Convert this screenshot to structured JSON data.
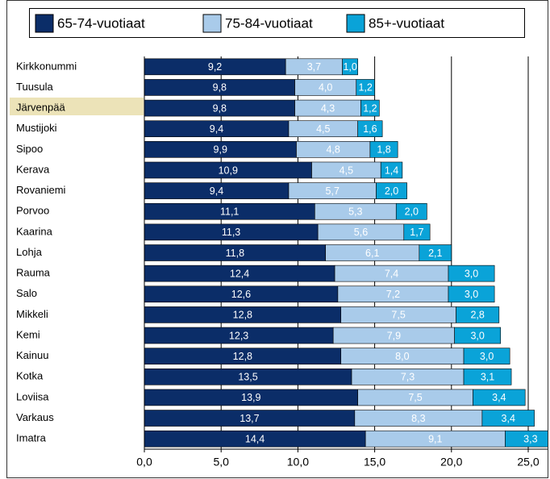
{
  "chart_data": {
    "type": "stacked_barh",
    "categories": [
      "Kirkkonummi",
      "Tuusula",
      "Järvenpää",
      "Mustijoki",
      "Sipoo",
      "Kerava",
      "Rovaniemi",
      "Porvoo",
      "Kaarina",
      "Lohja",
      "Rauma",
      "Salo",
      "Mikkeli",
      "Kemi",
      "Kainuu",
      "Kotka",
      "Loviisa",
      "Varkaus",
      "Imatra"
    ],
    "series": [
      {
        "name": "65-74-vuotiaat",
        "color": "#0b2d68",
        "values": [
          9.2,
          9.8,
          9.8,
          9.4,
          9.9,
          10.9,
          9.4,
          11.1,
          11.3,
          11.8,
          12.4,
          12.6,
          12.8,
          12.3,
          12.8,
          13.5,
          13.9,
          13.7,
          14.4
        ],
        "value_labels": [
          "9,2",
          "9,8",
          "9,8",
          "9,4",
          "9,9",
          "10,9",
          "9,4",
          "11,1",
          "11,3",
          "11,8",
          "12,4",
          "12,6",
          "12,8",
          "12,3",
          "12,8",
          "13,5",
          "13,9",
          "13,7",
          "14,4"
        ]
      },
      {
        "name": "75-84-vuotiaat",
        "color": "#a9cbea",
        "values": [
          3.7,
          4.0,
          4.3,
          4.5,
          4.8,
          4.5,
          5.7,
          5.3,
          5.6,
          6.1,
          7.4,
          7.2,
          7.5,
          7.9,
          8.0,
          7.3,
          7.5,
          8.3,
          9.1
        ],
        "value_labels": [
          "3,7",
          "4,0",
          "4,3",
          "4,5",
          "4,8",
          "4,5",
          "5,7",
          "5,3",
          "5,6",
          "6,1",
          "7,4",
          "7,2",
          "7,5",
          "7,9",
          "8,0",
          "7,3",
          "7,5",
          "8,3",
          "9,1"
        ]
      },
      {
        "name": "85+-vuotiaat",
        "color": "#0aa3d8",
        "values": [
          1.0,
          1.2,
          1.2,
          1.6,
          1.8,
          1.4,
          2.0,
          2.0,
          1.7,
          2.1,
          3.0,
          3.0,
          2.8,
          3.0,
          3.0,
          3.1,
          3.4,
          3.4,
          3.3
        ],
        "value_labels": [
          "1,0",
          "1,2",
          "1,2",
          "1,6",
          "1,8",
          "1,4",
          "2,0",
          "2,0",
          "1,7",
          "2,1",
          "3,0",
          "3,0",
          "2,8",
          "3,0",
          "3,0",
          "3,1",
          "3,4",
          "3,4",
          "3,3"
        ]
      }
    ],
    "xlim": [
      0,
      25
    ],
    "xticks": [
      {
        "value": 0,
        "label": "0,0"
      },
      {
        "value": 5,
        "label": "5,0"
      },
      {
        "value": 10,
        "label": "10,0"
      },
      {
        "value": 15,
        "label": "15,0"
      },
      {
        "value": 20,
        "label": "20,0"
      },
      {
        "value": 25,
        "label": "25,0"
      }
    ],
    "grid": true,
    "legend": "top"
  }
}
